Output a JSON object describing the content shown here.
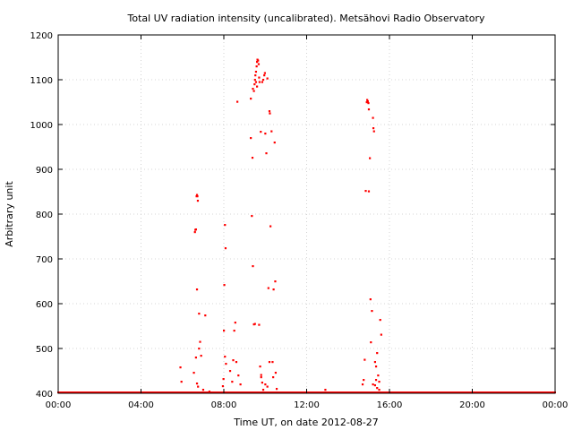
{
  "chart_data": {
    "type": "scatter",
    "title": "Total UV radiation intensity (uncalibrated). Metsähovi Radio Observatory",
    "xlabel": "Time UT, on date 2012-08-27",
    "ylabel": "Arbitrary unit",
    "xlim": [
      0,
      24
    ],
    "ylim": [
      400,
      1200
    ],
    "x_ticks": [
      {
        "value": 0,
        "label": "00:00"
      },
      {
        "value": 4,
        "label": "04:00"
      },
      {
        "value": 8,
        "label": "08:00"
      },
      {
        "value": 12,
        "label": "12:00"
      },
      {
        "value": 16,
        "label": "16:00"
      },
      {
        "value": 20,
        "label": "20:00"
      },
      {
        "value": 24,
        "label": "00:00"
      }
    ],
    "y_ticks": [
      400,
      500,
      600,
      700,
      800,
      900,
      1000,
      1100,
      1200
    ],
    "grid": true,
    "marker_color": "#ff0000",
    "baseline": {
      "value": 401,
      "x_from": 0,
      "x_to": 24
    },
    "series": [
      {
        "points": [
          [
            5.9,
            458
          ],
          [
            5.95,
            426
          ],
          [
            6.55,
            446
          ],
          [
            6.6,
            760
          ],
          [
            6.62,
            765
          ],
          [
            6.65,
            766
          ],
          [
            6.68,
            840
          ],
          [
            6.7,
            843
          ],
          [
            6.72,
            840
          ],
          [
            6.74,
            830
          ],
          [
            6.7,
            632
          ],
          [
            6.8,
            578
          ],
          [
            6.8,
            500
          ],
          [
            6.85,
            515
          ],
          [
            6.9,
            484
          ],
          [
            6.65,
            480
          ],
          [
            6.7,
            422
          ],
          [
            6.75,
            415
          ],
          [
            7.1,
            574
          ],
          [
            7.0,
            408
          ],
          [
            7.3,
            404
          ],
          [
            7.95,
            416
          ],
          [
            7.98,
            432
          ],
          [
            8.0,
            540
          ],
          [
            8.02,
            642
          ],
          [
            8.05,
            776
          ],
          [
            8.08,
            724
          ],
          [
            8.05,
            482
          ],
          [
            8.1,
            466
          ],
          [
            8.3,
            450
          ],
          [
            8.4,
            426
          ],
          [
            8.45,
            474
          ],
          [
            8.5,
            540
          ],
          [
            8.55,
            558
          ],
          [
            8.6,
            470
          ],
          [
            8.65,
            1051
          ],
          [
            8.7,
            440
          ],
          [
            8.8,
            420
          ],
          [
            9.3,
            970
          ],
          [
            9.35,
            796
          ],
          [
            9.38,
            926
          ],
          [
            9.4,
            684
          ],
          [
            9.45,
            554
          ],
          [
            9.5,
            555
          ],
          [
            9.3,
            1058
          ],
          [
            9.4,
            1080
          ],
          [
            9.45,
            1075
          ],
          [
            9.48,
            1090
          ],
          [
            9.5,
            1100
          ],
          [
            9.52,
            1110
          ],
          [
            9.55,
            1118
          ],
          [
            9.58,
            1130
          ],
          [
            9.6,
            1140
          ],
          [
            9.62,
            1145
          ],
          [
            9.65,
            1143
          ],
          [
            9.68,
            1135
          ],
          [
            9.7,
            1105
          ],
          [
            9.72,
            1095
          ],
          [
            9.6,
            1085
          ],
          [
            9.55,
            1095
          ],
          [
            9.7,
            553
          ],
          [
            9.75,
            460
          ],
          [
            9.78,
            984
          ],
          [
            9.8,
            436
          ],
          [
            9.85,
            1095
          ],
          [
            9.9,
            1100
          ],
          [
            9.95,
            1110
          ],
          [
            9.98,
            1115
          ],
          [
            10.0,
            980
          ],
          [
            10.05,
            936
          ],
          [
            10.1,
            1103
          ],
          [
            10.15,
            635
          ],
          [
            10.2,
            1030
          ],
          [
            10.22,
            1025
          ],
          [
            10.25,
            773
          ],
          [
            10.3,
            985
          ],
          [
            10.35,
            470
          ],
          [
            10.38,
            436
          ],
          [
            10.4,
            632
          ],
          [
            10.45,
            960
          ],
          [
            10.48,
            650
          ],
          [
            10.5,
            446
          ],
          [
            10.55,
            410
          ],
          [
            10.2,
            470
          ],
          [
            9.8,
            441
          ],
          [
            9.85,
            424
          ],
          [
            10.0,
            420
          ],
          [
            10.1,
            415
          ],
          [
            9.9,
            408
          ],
          [
            12.9,
            408
          ],
          [
            14.7,
            420
          ],
          [
            14.75,
            430
          ],
          [
            14.8,
            475
          ],
          [
            14.85,
            852
          ],
          [
            14.9,
            1050
          ],
          [
            14.92,
            1055
          ],
          [
            14.95,
            1052
          ],
          [
            14.98,
            1048
          ],
          [
            15.0,
            1034
          ],
          [
            15.0,
            851
          ],
          [
            15.05,
            925
          ],
          [
            15.08,
            610
          ],
          [
            15.1,
            514
          ],
          [
            15.15,
            584
          ],
          [
            15.2,
            1015
          ],
          [
            15.22,
            992
          ],
          [
            15.25,
            985
          ],
          [
            15.3,
            470
          ],
          [
            15.35,
            460
          ],
          [
            15.4,
            490
          ],
          [
            15.45,
            440
          ],
          [
            15.5,
            426
          ],
          [
            15.55,
            564
          ],
          [
            15.6,
            531
          ],
          [
            15.3,
            418
          ],
          [
            15.35,
            430
          ],
          [
            15.2,
            420
          ],
          [
            15.4,
            412
          ],
          [
            15.5,
            408
          ]
        ]
      }
    ]
  }
}
